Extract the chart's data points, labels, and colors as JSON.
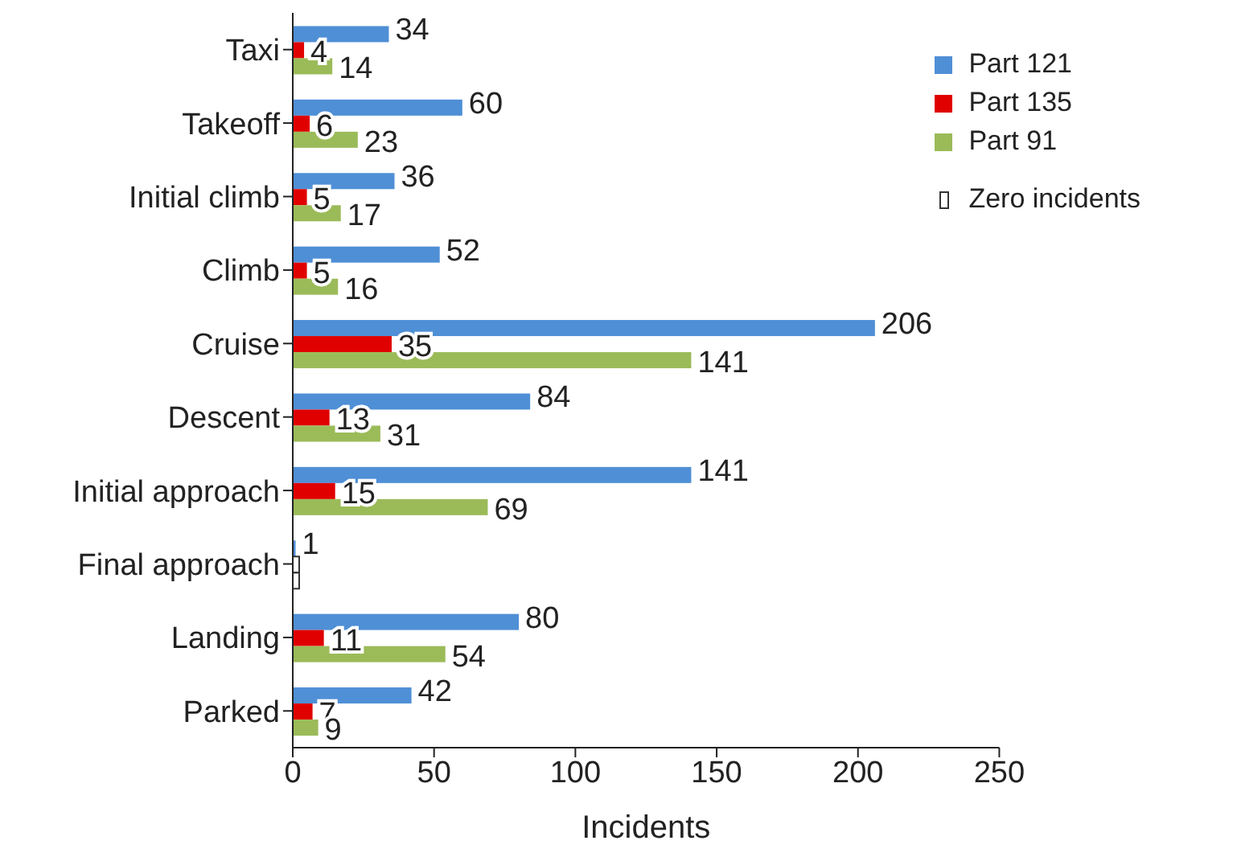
{
  "chart_data": {
    "type": "bar",
    "orientation": "horizontal",
    "xlabel": "Incidents",
    "categories": [
      "Taxi",
      "Takeoff",
      "Initial climb",
      "Climb",
      "Cruise",
      "Descent",
      "Initial approach",
      "Final approach",
      "Landing",
      "Parked"
    ],
    "series": [
      {
        "name": "Part 121",
        "color": "#4f8fd6",
        "values": [
          34,
          60,
          36,
          52,
          206,
          84,
          141,
          1,
          80,
          42
        ],
        "value_labels": [
          "34",
          "60",
          "36",
          "52",
          "206",
          "84",
          "141",
          "1",
          "80",
          "42"
        ]
      },
      {
        "name": "Part 135",
        "color": "#e00000",
        "values": [
          4,
          6,
          5,
          5,
          35,
          13,
          15,
          0,
          11,
          7
        ],
        "value_labels": [
          "4",
          "6",
          "5",
          "5",
          "35",
          "13",
          "15",
          null,
          "11",
          "7"
        ]
      },
      {
        "name": "Part 91",
        "color": "#9bbb59",
        "values": [
          14,
          23,
          17,
          16,
          141,
          31,
          69,
          0,
          54,
          9
        ],
        "value_labels": [
          "14",
          "23",
          "17",
          "16",
          "141",
          "31",
          "69",
          null,
          "54",
          "9"
        ]
      }
    ],
    "xlim": [
      0,
      250
    ],
    "xticks": [
      0,
      50,
      100,
      150,
      200,
      250
    ],
    "legend": "top right",
    "grid": false,
    "annotations": [
      "Zero incidents"
    ]
  }
}
